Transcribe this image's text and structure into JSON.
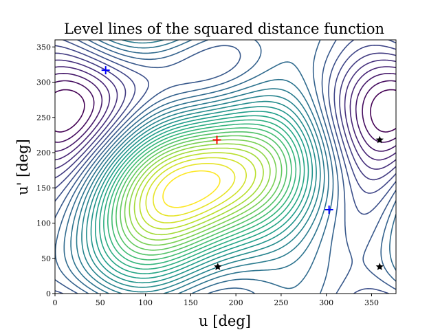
{
  "chart_data": {
    "type": "contour",
    "title": "Level lines of the squared distance function",
    "xlabel": "u [deg]",
    "ylabel": "u' [deg]",
    "xlim": [
      0,
      377
    ],
    "ylim": [
      0,
      360
    ],
    "xticks": [
      0,
      50,
      100,
      150,
      200,
      250,
      300,
      350
    ],
    "yticks": [
      0,
      50,
      100,
      150,
      200,
      250,
      300,
      350
    ],
    "grid": false,
    "colormap": "viridis",
    "levels": 30,
    "markers": [
      {
        "kind": "maximum",
        "symbol": "plus",
        "color": "#ff0000",
        "x": 179,
        "y": 218
      },
      {
        "kind": "minimum",
        "symbol": "plus",
        "color": "#0000ff",
        "x": 56,
        "y": 317
      },
      {
        "kind": "minimum",
        "symbol": "plus",
        "color": "#0000ff",
        "x": 303,
        "y": 119
      },
      {
        "kind": "saddle",
        "symbol": "star",
        "color": "#000000",
        "x": 180,
        "y": 38
      },
      {
        "kind": "saddle",
        "symbol": "star",
        "color": "#000000",
        "x": 359,
        "y": 218
      },
      {
        "kind": "saddle",
        "symbol": "star",
        "color": "#000000",
        "x": 359,
        "y": 38
      }
    ]
  }
}
